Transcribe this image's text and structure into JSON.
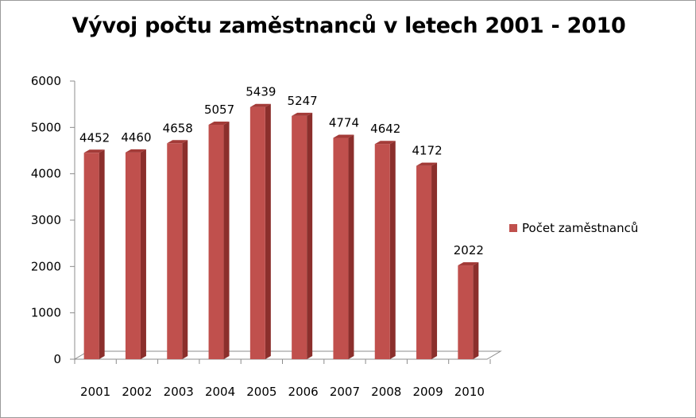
{
  "chart_data": {
    "type": "bar",
    "title": "Vývoj počtu zaměstnanců v letech 2001 - 2010",
    "categories": [
      "2001",
      "2002",
      "2003",
      "2004",
      "2005",
      "2006",
      "2007",
      "2008",
      "2009",
      "2010"
    ],
    "series": [
      {
        "name": "Počet zaměstnanců",
        "values": [
          4452,
          4460,
          4658,
          5057,
          5439,
          5247,
          4774,
          4642,
          4172,
          2022
        ],
        "color": "#C0504D"
      }
    ],
    "ylim": [
      0,
      6000
    ],
    "yticks": [
      0,
      1000,
      2000,
      3000,
      4000,
      5000,
      6000
    ],
    "legend_position": "right",
    "grid": false,
    "style": "3d-column"
  }
}
